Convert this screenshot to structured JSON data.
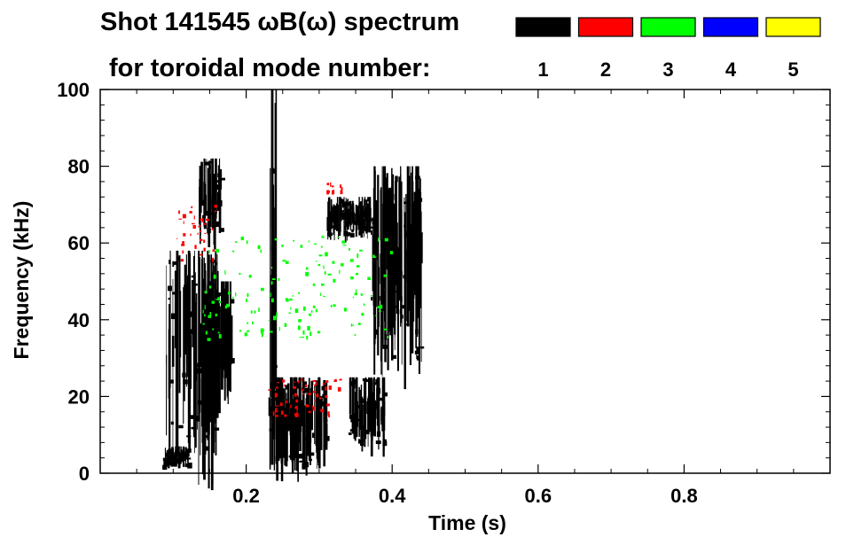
{
  "chart_data": {
    "type": "heatmap",
    "title_line1": "Shot 141545 ωB(ω) spectrum",
    "title_line2": "for toroidal mode number:",
    "xlabel": "Time (s)",
    "ylabel": "Frequency (kHz)",
    "xlim": [
      0.0,
      1.0
    ],
    "ylim": [
      0,
      100
    ],
    "xticks": [
      0.2,
      0.4,
      0.6,
      0.8
    ],
    "xtick_labels": [
      "0.2",
      "0.4",
      "0.6",
      "0.8"
    ],
    "yticks": [
      0,
      20,
      40,
      60,
      80,
      100
    ],
    "ytick_labels": [
      "0",
      "20",
      "40",
      "60",
      "80",
      "100"
    ],
    "legend": [
      {
        "mode": "1",
        "color": "#000000"
      },
      {
        "mode": "2",
        "color": "#ff0000"
      },
      {
        "mode": "3",
        "color": "#00ff00"
      },
      {
        "mode": "4",
        "color": "#0000ff"
      },
      {
        "mode": "5",
        "color": "#ffff00"
      }
    ],
    "features": [
      {
        "name": "mode-1-early-burst",
        "mode": "1",
        "t": [
          0.09,
          0.16
        ],
        "f": [
          5,
          58
        ]
      },
      {
        "name": "mode-1-late-burst",
        "mode": "1",
        "t": [
          0.14,
          0.18
        ],
        "f": [
          20,
          50
        ]
      },
      {
        "name": "mode-1-band-70k-a",
        "mode": "1",
        "t": [
          0.135,
          0.165
        ],
        "f": [
          62,
          82
        ]
      },
      {
        "name": "mode-1-low-cluster-a",
        "mode": "1",
        "t": [
          0.085,
          0.12
        ],
        "f": [
          2,
          7
        ]
      },
      {
        "name": "mode-1-strip-0.24",
        "mode": "1",
        "t": [
          0.232,
          0.242
        ],
        "f": [
          0,
          100
        ]
      },
      {
        "name": "mode-1-low-cluster-b",
        "mode": "1",
        "t": [
          0.23,
          0.31
        ],
        "f": [
          2,
          25
        ]
      },
      {
        "name": "mode-1-band-67k",
        "mode": "1",
        "t": [
          0.31,
          0.37
        ],
        "f": [
          62,
          72
        ]
      },
      {
        "name": "mode-1-low-cluster-c",
        "mode": "1",
        "t": [
          0.34,
          0.39
        ],
        "f": [
          8,
          25
        ]
      },
      {
        "name": "mode-1-comb-0.37",
        "mode": "1",
        "t": [
          0.37,
          0.44
        ],
        "f": [
          30,
          80
        ]
      },
      {
        "name": "mode-2-chirp-low",
        "mode": "2",
        "t": [
          0.23,
          0.33
        ],
        "f": [
          15,
          25
        ]
      },
      {
        "name": "mode-2-high-band",
        "mode": "2",
        "t": [
          0.1,
          0.16
        ],
        "f": [
          55,
          70
        ]
      },
      {
        "name": "mode-2-75k",
        "mode": "2",
        "t": [
          0.31,
          0.33
        ],
        "f": [
          73,
          76
        ]
      },
      {
        "name": "mode-3-spots",
        "mode": "3",
        "t": [
          0.14,
          0.4
        ],
        "f": [
          35,
          62
        ]
      }
    ]
  }
}
